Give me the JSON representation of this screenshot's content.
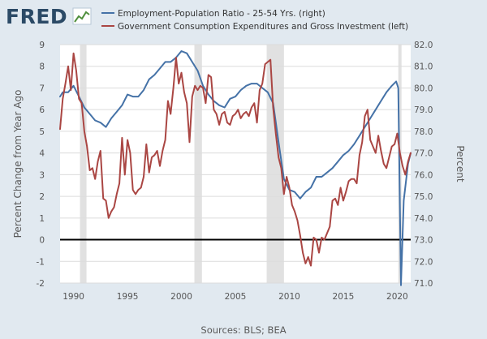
{
  "header": {
    "logo_text": "FRED",
    "logo_icon": "line-chart-icon"
  },
  "source": "Sources: BLS; BEA",
  "colors": {
    "background": "#e1e9f0",
    "plot_background": "#ffffff",
    "recession": "#e1e1e1",
    "employment_series": "#4572a7",
    "government_series": "#aa4643",
    "zero_line": "#000000"
  },
  "chart_data": {
    "type": "line",
    "title": "",
    "xlabel": "",
    "ylabel_left": "Percent Change from Year Ago",
    "ylabel_right": "Percent",
    "xlim": [
      1988.75,
      2021.25
    ],
    "ylim_left": [
      -2,
      9
    ],
    "ylim_right": [
      71.0,
      82.0
    ],
    "x_ticks": [
      1990,
      1995,
      2000,
      2005,
      2010,
      2015,
      2020
    ],
    "y_ticks_left": [
      -2,
      -1,
      0,
      1,
      2,
      3,
      4,
      5,
      6,
      7,
      8,
      9
    ],
    "y_ticks_right": [
      "71.0",
      "72.0",
      "73.0",
      "74.0",
      "75.0",
      "76.0",
      "77.0",
      "78.0",
      "79.0",
      "80.0",
      "81.0",
      "82.0"
    ],
    "grid": "horizontal",
    "legend_position": "top",
    "recessions": [
      [
        1990.6,
        1991.2
      ],
      [
        2001.2,
        2001.9
      ],
      [
        2007.9,
        2009.5
      ],
      [
        2020.1,
        2020.4
      ]
    ],
    "series": [
      {
        "name": "Employment-Population Ratio - 25-54 Yrs. (right)",
        "axis": "right",
        "color": "#4572a7",
        "points": [
          [
            1988.75,
            79.6
          ],
          [
            1989.0,
            79.8
          ],
          [
            1989.5,
            79.8
          ],
          [
            1990.0,
            80.1
          ],
          [
            1990.5,
            79.6
          ],
          [
            1991.0,
            79.1
          ],
          [
            1991.5,
            78.8
          ],
          [
            1992.0,
            78.5
          ],
          [
            1992.5,
            78.4
          ],
          [
            1993.0,
            78.2
          ],
          [
            1993.5,
            78.6
          ],
          [
            1994.0,
            78.9
          ],
          [
            1994.5,
            79.2
          ],
          [
            1995.0,
            79.7
          ],
          [
            1995.5,
            79.6
          ],
          [
            1996.0,
            79.6
          ],
          [
            1996.5,
            79.9
          ],
          [
            1997.0,
            80.4
          ],
          [
            1997.5,
            80.6
          ],
          [
            1998.0,
            80.9
          ],
          [
            1998.5,
            81.2
          ],
          [
            1999.0,
            81.2
          ],
          [
            1999.5,
            81.4
          ],
          [
            2000.0,
            81.7
          ],
          [
            2000.5,
            81.6
          ],
          [
            2001.0,
            81.2
          ],
          [
            2001.5,
            80.8
          ],
          [
            2002.0,
            80.1
          ],
          [
            2002.5,
            79.7
          ],
          [
            2003.0,
            79.4
          ],
          [
            2003.5,
            79.2
          ],
          [
            2004.0,
            79.1
          ],
          [
            2004.5,
            79.5
          ],
          [
            2005.0,
            79.6
          ],
          [
            2005.5,
            79.9
          ],
          [
            2006.0,
            80.1
          ],
          [
            2006.5,
            80.2
          ],
          [
            2007.0,
            80.2
          ],
          [
            2007.5,
            80.0
          ],
          [
            2008.0,
            79.8
          ],
          [
            2008.5,
            79.3
          ],
          [
            2009.0,
            77.5
          ],
          [
            2009.5,
            75.8
          ],
          [
            2010.0,
            75.3
          ],
          [
            2010.5,
            75.2
          ],
          [
            2011.0,
            74.9
          ],
          [
            2011.5,
            75.2
          ],
          [
            2012.0,
            75.4
          ],
          [
            2012.5,
            75.9
          ],
          [
            2013.0,
            75.9
          ],
          [
            2013.5,
            76.1
          ],
          [
            2014.0,
            76.3
          ],
          [
            2014.5,
            76.6
          ],
          [
            2015.0,
            76.9
          ],
          [
            2015.5,
            77.1
          ],
          [
            2016.0,
            77.4
          ],
          [
            2016.5,
            77.8
          ],
          [
            2017.0,
            78.2
          ],
          [
            2017.5,
            78.6
          ],
          [
            2018.0,
            79.0
          ],
          [
            2018.5,
            79.4
          ],
          [
            2019.0,
            79.8
          ],
          [
            2019.5,
            80.1
          ],
          [
            2019.9,
            80.3
          ],
          [
            2020.1,
            80.0
          ],
          [
            2020.35,
            70.9
          ],
          [
            2020.6,
            74.8
          ],
          [
            2021.0,
            76.5
          ],
          [
            2021.25,
            77.0
          ]
        ]
      },
      {
        "name": "Government Consumption Expenditures and Gross Investment (left)",
        "axis": "left",
        "color": "#aa4643",
        "points": [
          [
            1988.75,
            5.1
          ],
          [
            1989.0,
            6.5
          ],
          [
            1989.25,
            7.2
          ],
          [
            1989.5,
            8.0
          ],
          [
            1989.75,
            6.9
          ],
          [
            1990.0,
            8.6
          ],
          [
            1990.25,
            7.8
          ],
          [
            1990.5,
            6.5
          ],
          [
            1990.75,
            6.3
          ],
          [
            1991.0,
            5.0
          ],
          [
            1991.25,
            4.3
          ],
          [
            1991.5,
            3.2
          ],
          [
            1991.75,
            3.3
          ],
          [
            1992.0,
            2.8
          ],
          [
            1992.25,
            3.6
          ],
          [
            1992.5,
            4.1
          ],
          [
            1992.75,
            1.9
          ],
          [
            1993.0,
            1.8
          ],
          [
            1993.25,
            1.0
          ],
          [
            1993.5,
            1.3
          ],
          [
            1993.75,
            1.5
          ],
          [
            1994.0,
            2.1
          ],
          [
            1994.25,
            2.6
          ],
          [
            1994.5,
            4.7
          ],
          [
            1994.75,
            3.0
          ],
          [
            1995.0,
            4.6
          ],
          [
            1995.25,
            4.0
          ],
          [
            1995.5,
            2.3
          ],
          [
            1995.75,
            2.1
          ],
          [
            1996.0,
            2.3
          ],
          [
            1996.25,
            2.4
          ],
          [
            1996.5,
            2.9
          ],
          [
            1996.75,
            4.4
          ],
          [
            1997.0,
            3.1
          ],
          [
            1997.25,
            3.8
          ],
          [
            1997.5,
            3.9
          ],
          [
            1997.75,
            4.1
          ],
          [
            1998.0,
            3.4
          ],
          [
            1998.25,
            4.1
          ],
          [
            1998.5,
            4.6
          ],
          [
            1998.75,
            6.4
          ],
          [
            1999.0,
            5.8
          ],
          [
            1999.25,
            7.0
          ],
          [
            1999.5,
            8.4
          ],
          [
            1999.75,
            7.2
          ],
          [
            2000.0,
            7.7
          ],
          [
            2000.25,
            6.8
          ],
          [
            2000.5,
            6.3
          ],
          [
            2000.75,
            4.5
          ],
          [
            2001.0,
            6.6
          ],
          [
            2001.25,
            7.1
          ],
          [
            2001.5,
            6.9
          ],
          [
            2001.75,
            7.1
          ],
          [
            2002.0,
            7.0
          ],
          [
            2002.25,
            6.3
          ],
          [
            2002.5,
            7.6
          ],
          [
            2002.75,
            7.5
          ],
          [
            2003.0,
            6.0
          ],
          [
            2003.25,
            5.8
          ],
          [
            2003.5,
            5.3
          ],
          [
            2003.75,
            5.8
          ],
          [
            2004.0,
            5.9
          ],
          [
            2004.25,
            5.4
          ],
          [
            2004.5,
            5.3
          ],
          [
            2004.75,
            5.7
          ],
          [
            2005.0,
            5.8
          ],
          [
            2005.25,
            6.0
          ],
          [
            2005.5,
            5.6
          ],
          [
            2005.75,
            5.8
          ],
          [
            2006.0,
            5.9
          ],
          [
            2006.25,
            5.7
          ],
          [
            2006.5,
            6.1
          ],
          [
            2006.75,
            6.3
          ],
          [
            2007.0,
            5.4
          ],
          [
            2007.25,
            6.9
          ],
          [
            2007.5,
            7.2
          ],
          [
            2007.75,
            8.1
          ],
          [
            2008.0,
            8.2
          ],
          [
            2008.25,
            8.3
          ],
          [
            2008.5,
            6.1
          ],
          [
            2008.75,
            4.9
          ],
          [
            2009.0,
            3.8
          ],
          [
            2009.25,
            3.3
          ],
          [
            2009.5,
            2.1
          ],
          [
            2009.75,
            2.9
          ],
          [
            2010.0,
            2.4
          ],
          [
            2010.25,
            1.6
          ],
          [
            2010.5,
            1.3
          ],
          [
            2010.75,
            0.9
          ],
          [
            2011.0,
            0.2
          ],
          [
            2011.25,
            -0.6
          ],
          [
            2011.5,
            -1.1
          ],
          [
            2011.75,
            -0.8
          ],
          [
            2012.0,
            -1.2
          ],
          [
            2012.25,
            0.1
          ],
          [
            2012.5,
            0.0
          ],
          [
            2012.75,
            -0.6
          ],
          [
            2013.0,
            0.1
          ],
          [
            2013.25,
            0.0
          ],
          [
            2013.5,
            0.3
          ],
          [
            2013.75,
            0.6
          ],
          [
            2014.0,
            1.8
          ],
          [
            2014.25,
            1.9
          ],
          [
            2014.5,
            1.6
          ],
          [
            2014.75,
            2.4
          ],
          [
            2015.0,
            1.8
          ],
          [
            2015.25,
            2.2
          ],
          [
            2015.5,
            2.7
          ],
          [
            2015.75,
            2.8
          ],
          [
            2016.0,
            2.8
          ],
          [
            2016.25,
            2.6
          ],
          [
            2016.5,
            3.9
          ],
          [
            2016.75,
            4.5
          ],
          [
            2017.0,
            5.7
          ],
          [
            2017.25,
            6.0
          ],
          [
            2017.5,
            4.6
          ],
          [
            2017.75,
            4.3
          ],
          [
            2018.0,
            4.0
          ],
          [
            2018.25,
            4.8
          ],
          [
            2018.5,
            4.1
          ],
          [
            2018.75,
            3.5
          ],
          [
            2019.0,
            3.3
          ],
          [
            2019.25,
            3.8
          ],
          [
            2019.5,
            4.3
          ],
          [
            2019.75,
            4.4
          ],
          [
            2020.0,
            4.9
          ],
          [
            2020.25,
            4.0
          ],
          [
            2020.5,
            3.4
          ],
          [
            2020.75,
            3.0
          ],
          [
            2021.0,
            3.6
          ],
          [
            2021.25,
            4.0
          ]
        ]
      }
    ]
  }
}
